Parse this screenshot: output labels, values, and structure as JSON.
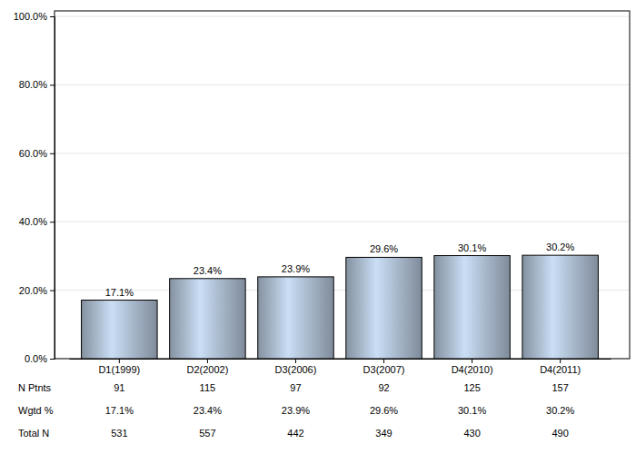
{
  "chart_data": {
    "type": "bar",
    "categories": [
      "D1(1999)",
      "D2(2002)",
      "D3(2006)",
      "D3(2007)",
      "D4(2010)",
      "D4(2011)"
    ],
    "values": [
      17.1,
      23.4,
      23.9,
      29.6,
      30.1,
      30.2
    ],
    "value_labels": [
      "17.1%",
      "23.4%",
      "23.9%",
      "29.6%",
      "30.1%",
      "30.2%"
    ],
    "data_labels": true,
    "color": "#a3b3c6",
    "ylim": [
      0,
      100
    ],
    "yticks": [
      {
        "value": 0,
        "label": "0.0%"
      },
      {
        "value": 20,
        "label": "20.0%"
      },
      {
        "value": 40,
        "label": "40.0%"
      },
      {
        "value": 60,
        "label": "60.0%"
      },
      {
        "value": 80,
        "label": "80.0%"
      },
      {
        "value": 100,
        "label": "100.0%"
      }
    ],
    "grid": true,
    "table": [
      {
        "label": "N Ptnts",
        "values": [
          91,
          115,
          97,
          92,
          125,
          157
        ]
      },
      {
        "label": "Wgtd %",
        "values": [
          17.1,
          23.4,
          23.9,
          29.6,
          30.1,
          30.2
        ],
        "value_labels": [
          "17.1%",
          "23.4%",
          "23.9%",
          "29.6%",
          "30.1%",
          "30.2%"
        ]
      },
      {
        "label": "Total N",
        "values": [
          531,
          557,
          442,
          349,
          430,
          490
        ]
      }
    ]
  }
}
